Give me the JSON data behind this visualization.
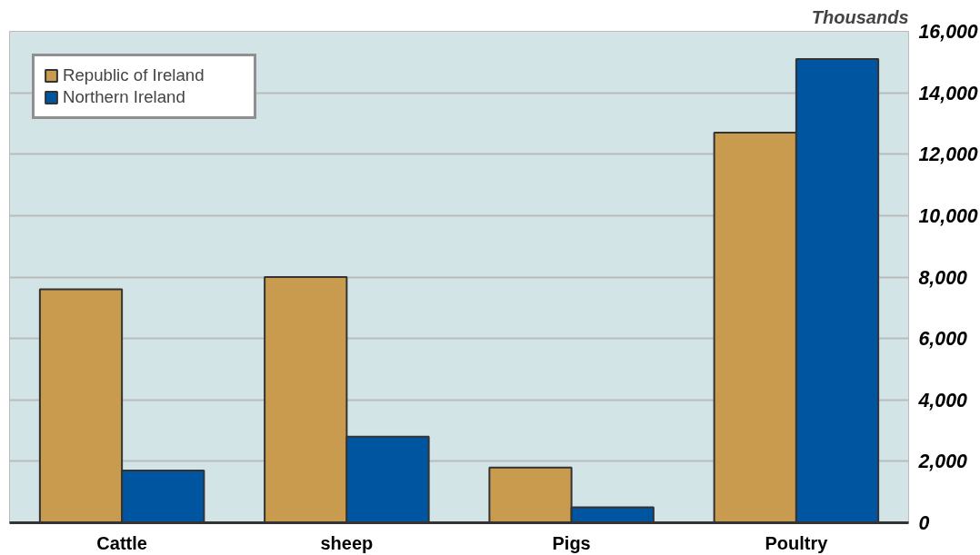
{
  "chart_data": {
    "type": "bar",
    "ylabel": "Thousands",
    "categories": [
      "Cattle",
      "sheep",
      "Pigs",
      "Poultry"
    ],
    "series": [
      {
        "name": "Republic of Ireland",
        "color": "#c89b4e",
        "values": [
          7600,
          8000,
          1800,
          12700
        ]
      },
      {
        "name": "Northern Ireland",
        "color": "#0055a0",
        "values": [
          1700,
          2800,
          500,
          15100
        ]
      }
    ],
    "ylim": [
      0,
      16000
    ],
    "yticks": [
      0,
      {
        "value": 2000,
        "label": "2,000"
      },
      {
        "value": 4000,
        "label": "4,000"
      },
      {
        "value": 6000,
        "label": "6,000"
      },
      {
        "value": 8000,
        "label": "8,000"
      },
      {
        "value": 10000,
        "label": "10,000"
      },
      {
        "value": 12000,
        "label": "12,000"
      },
      {
        "value": 14000,
        "label": "14,000"
      },
      {
        "value": 16000,
        "label": "16,000"
      }
    ],
    "grid": "y",
    "legend": "top left"
  }
}
